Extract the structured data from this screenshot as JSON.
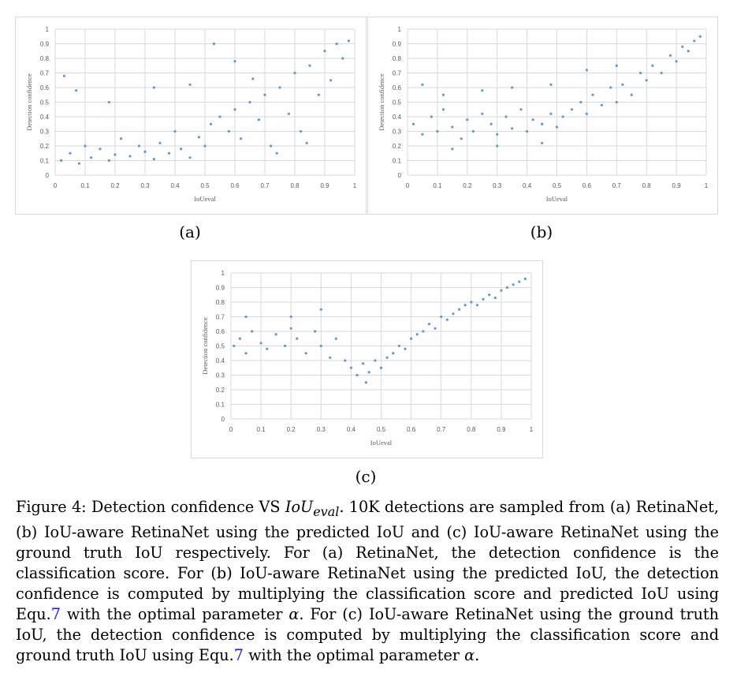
{
  "chart_data": [
    {
      "id": "a",
      "type": "scatter",
      "xlabel": "IoUeval",
      "ylabel": "Detection confidence",
      "xlim": [
        0,
        1
      ],
      "ylim": [
        0,
        1
      ],
      "xticks": [
        "0",
        "0.1",
        "0.2",
        "0.3",
        "0.4",
        "0.5",
        "0.6",
        "0.7",
        "0.8",
        "0.9",
        "1"
      ],
      "yticks": [
        "0",
        "0.1",
        "0.2",
        "0.3",
        "0.4",
        "0.5",
        "0.6",
        "0.7",
        "0.8",
        "0.9",
        "1"
      ],
      "grid": true,
      "legend": "none",
      "color": "#5b9bd5",
      "points": [
        [
          0.02,
          0.1
        ],
        [
          0.05,
          0.15
        ],
        [
          0.08,
          0.08
        ],
        [
          0.1,
          0.2
        ],
        [
          0.12,
          0.12
        ],
        [
          0.15,
          0.18
        ],
        [
          0.18,
          0.1
        ],
        [
          0.2,
          0.14
        ],
        [
          0.22,
          0.25
        ],
        [
          0.25,
          0.13
        ],
        [
          0.28,
          0.2
        ],
        [
          0.3,
          0.16
        ],
        [
          0.33,
          0.11
        ],
        [
          0.35,
          0.22
        ],
        [
          0.38,
          0.15
        ],
        [
          0.4,
          0.3
        ],
        [
          0.42,
          0.18
        ],
        [
          0.45,
          0.12
        ],
        [
          0.48,
          0.26
        ],
        [
          0.5,
          0.2
        ],
        [
          0.52,
          0.35
        ],
        [
          0.55,
          0.4
        ],
        [
          0.58,
          0.3
        ],
        [
          0.6,
          0.45
        ],
        [
          0.62,
          0.25
        ],
        [
          0.65,
          0.5
        ],
        [
          0.68,
          0.38
        ],
        [
          0.7,
          0.55
        ],
        [
          0.72,
          0.2
        ],
        [
          0.75,
          0.6
        ],
        [
          0.78,
          0.42
        ],
        [
          0.8,
          0.7
        ],
        [
          0.82,
          0.3
        ],
        [
          0.85,
          0.75
        ],
        [
          0.88,
          0.55
        ],
        [
          0.9,
          0.85
        ],
        [
          0.92,
          0.65
        ],
        [
          0.94,
          0.9
        ],
        [
          0.96,
          0.8
        ],
        [
          0.98,
          0.92
        ],
        [
          0.03,
          0.68
        ],
        [
          0.07,
          0.58
        ],
        [
          0.18,
          0.5
        ],
        [
          0.33,
          0.6
        ],
        [
          0.45,
          0.62
        ],
        [
          0.53,
          0.9
        ],
        [
          0.6,
          0.78
        ],
        [
          0.66,
          0.66
        ],
        [
          0.74,
          0.15
        ],
        [
          0.84,
          0.22
        ]
      ]
    },
    {
      "id": "b",
      "type": "scatter",
      "xlabel": "IoUeval",
      "ylabel": "Detection confidence",
      "xlim": [
        0,
        1
      ],
      "ylim": [
        0,
        1
      ],
      "xticks": [
        "0",
        "0.1",
        "0.2",
        "0.3",
        "0.4",
        "0.5",
        "0.6",
        "0.7",
        "0.8",
        "0.9",
        "1"
      ],
      "yticks": [
        "0",
        "0.1",
        "0.2",
        "0.3",
        "0.4",
        "0.5",
        "0.6",
        "0.7",
        "0.8",
        "0.9",
        "1"
      ],
      "grid": true,
      "legend": "none",
      "color": "#5b9bd5",
      "points": [
        [
          0.02,
          0.35
        ],
        [
          0.05,
          0.28
        ],
        [
          0.08,
          0.4
        ],
        [
          0.1,
          0.3
        ],
        [
          0.12,
          0.45
        ],
        [
          0.15,
          0.33
        ],
        [
          0.18,
          0.25
        ],
        [
          0.2,
          0.38
        ],
        [
          0.22,
          0.3
        ],
        [
          0.25,
          0.42
        ],
        [
          0.28,
          0.35
        ],
        [
          0.3,
          0.28
        ],
        [
          0.33,
          0.4
        ],
        [
          0.35,
          0.32
        ],
        [
          0.38,
          0.45
        ],
        [
          0.4,
          0.3
        ],
        [
          0.42,
          0.38
        ],
        [
          0.45,
          0.35
        ],
        [
          0.48,
          0.42
        ],
        [
          0.5,
          0.33
        ],
        [
          0.52,
          0.4
        ],
        [
          0.55,
          0.45
        ],
        [
          0.58,
          0.5
        ],
        [
          0.6,
          0.42
        ],
        [
          0.62,
          0.55
        ],
        [
          0.65,
          0.48
        ],
        [
          0.68,
          0.6
        ],
        [
          0.7,
          0.5
        ],
        [
          0.72,
          0.62
        ],
        [
          0.75,
          0.55
        ],
        [
          0.78,
          0.7
        ],
        [
          0.8,
          0.65
        ],
        [
          0.82,
          0.75
        ],
        [
          0.85,
          0.7
        ],
        [
          0.88,
          0.82
        ],
        [
          0.9,
          0.78
        ],
        [
          0.92,
          0.88
        ],
        [
          0.94,
          0.85
        ],
        [
          0.96,
          0.92
        ],
        [
          0.98,
          0.95
        ],
        [
          0.05,
          0.62
        ],
        [
          0.12,
          0.55
        ],
        [
          0.25,
          0.58
        ],
        [
          0.35,
          0.6
        ],
        [
          0.48,
          0.62
        ],
        [
          0.6,
          0.72
        ],
        [
          0.7,
          0.75
        ],
        [
          0.3,
          0.2
        ],
        [
          0.45,
          0.22
        ],
        [
          0.15,
          0.18
        ]
      ]
    },
    {
      "id": "c",
      "type": "scatter",
      "xlabel": "IoUeval",
      "ylabel": "Detection confidence",
      "xlim": [
        0,
        1
      ],
      "ylim": [
        0,
        1
      ],
      "xticks": [
        "0",
        "0.1",
        "0.2",
        "0.3",
        "0.4",
        "0.5",
        "0.6",
        "0.7",
        "0.8",
        "0.9",
        "1"
      ],
      "yticks": [
        "0",
        "0.1",
        "0.2",
        "0.3",
        "0.4",
        "0.5",
        "0.6",
        "0.7",
        "0.8",
        "0.9",
        "1"
      ],
      "grid": true,
      "legend": "none",
      "color": "#5b9bd5",
      "points": [
        [
          0.01,
          0.5
        ],
        [
          0.03,
          0.55
        ],
        [
          0.05,
          0.45
        ],
        [
          0.07,
          0.6
        ],
        [
          0.1,
          0.52
        ],
        [
          0.12,
          0.48
        ],
        [
          0.15,
          0.58
        ],
        [
          0.18,
          0.5
        ],
        [
          0.2,
          0.62
        ],
        [
          0.22,
          0.55
        ],
        [
          0.25,
          0.45
        ],
        [
          0.28,
          0.6
        ],
        [
          0.3,
          0.5
        ],
        [
          0.33,
          0.42
        ],
        [
          0.35,
          0.55
        ],
        [
          0.38,
          0.4
        ],
        [
          0.4,
          0.35
        ],
        [
          0.42,
          0.3
        ],
        [
          0.44,
          0.38
        ],
        [
          0.46,
          0.32
        ],
        [
          0.48,
          0.4
        ],
        [
          0.5,
          0.35
        ],
        [
          0.52,
          0.42
        ],
        [
          0.54,
          0.45
        ],
        [
          0.56,
          0.5
        ],
        [
          0.58,
          0.48
        ],
        [
          0.6,
          0.55
        ],
        [
          0.62,
          0.58
        ],
        [
          0.64,
          0.6
        ],
        [
          0.66,
          0.65
        ],
        [
          0.68,
          0.62
        ],
        [
          0.7,
          0.7
        ],
        [
          0.72,
          0.68
        ],
        [
          0.74,
          0.72
        ],
        [
          0.76,
          0.75
        ],
        [
          0.78,
          0.78
        ],
        [
          0.8,
          0.8
        ],
        [
          0.82,
          0.78
        ],
        [
          0.84,
          0.82
        ],
        [
          0.86,
          0.85
        ],
        [
          0.88,
          0.83
        ],
        [
          0.9,
          0.88
        ],
        [
          0.92,
          0.9
        ],
        [
          0.94,
          0.92
        ],
        [
          0.96,
          0.94
        ],
        [
          0.98,
          0.96
        ],
        [
          0.05,
          0.7
        ],
        [
          0.2,
          0.7
        ],
        [
          0.3,
          0.75
        ],
        [
          0.45,
          0.25
        ]
      ]
    }
  ],
  "sub_labels": [
    "(a)",
    "(b)",
    "(c)"
  ],
  "caption": {
    "prefix": "Figure 4: Detection confidence VS ",
    "iou_main": "IoU",
    "iou_sub": "eval",
    "p1": ". 10K detections are sampled from (a) RetinaNet, (b) IoU-aware RetinaNet using the predicted IoU and (c) IoU-aware RetinaNet using the ground truth IoU respectively. For (a) RetinaNet, the detection confidence is the classification score. For (b) IoU-aware RetinaNet using the predicted IoU, the detection confidence is computed by multiplying the classification score and predicted IoU using Equ.",
    "ref1": "7",
    "p2": " with the optimal parameter ",
    "alpha1": "α",
    "p3": ". For (c) IoU-aware RetinaNet using the ground truth IoU, the detection confidence is computed by multiplying the classification score and ground truth IoU using Equ.",
    "ref2": "7",
    "p4": " with the optimal parameter ",
    "alpha2": "α",
    "p5": "."
  }
}
